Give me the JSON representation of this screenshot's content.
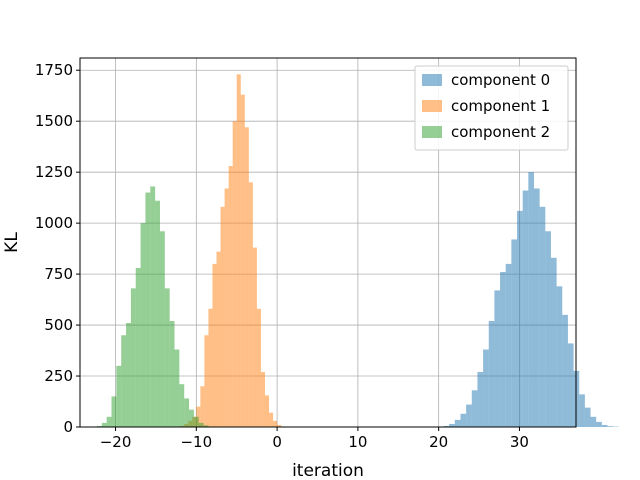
{
  "chart_data": {
    "type": "histogram",
    "xlabel": "iteration",
    "ylabel": "KL",
    "xlim": [
      -24.4,
      37.0
    ],
    "ylim": [
      0,
      1810
    ],
    "xticks": [
      -20,
      -10,
      0,
      10,
      20,
      30
    ],
    "yticks": [
      0,
      250,
      500,
      750,
      1000,
      1250,
      1500,
      1750
    ],
    "grid": true,
    "legend_position": "top-right",
    "series": [
      {
        "name": "component 0",
        "color": "#1f77b4",
        "alpha": 0.5,
        "bin_start": 20.6,
        "bin_width": 0.7,
        "counts": [
          5,
          15,
          35,
          65,
          110,
          180,
          270,
          380,
          520,
          670,
          760,
          800,
          920,
          1060,
          1160,
          1250,
          1170,
          1080,
          960,
          830,
          690,
          550,
          410,
          275,
          160,
          95,
          50,
          25,
          10,
          4,
          2
        ]
      },
      {
        "name": "component 1",
        "color": "#ff7f0e",
        "alpha": 0.5,
        "bin_start": -12.0,
        "bin_width": 0.5,
        "counts": [
          5,
          15,
          30,
          50,
          100,
          200,
          450,
          580,
          800,
          860,
          1080,
          1170,
          1280,
          1500,
          1730,
          1630,
          1470,
          1200,
          880,
          580,
          270,
          155,
          70,
          30,
          10,
          3
        ]
      },
      {
        "name": "component 2",
        "color": "#2ca02c",
        "alpha": 0.5,
        "bin_start": -22.3,
        "bin_width": 0.6,
        "counts": [
          5,
          20,
          50,
          150,
          300,
          450,
          510,
          680,
          780,
          1000,
          1150,
          1180,
          1110,
          960,
          680,
          520,
          380,
          210,
          140,
          85,
          50,
          20,
          8
        ]
      }
    ]
  }
}
